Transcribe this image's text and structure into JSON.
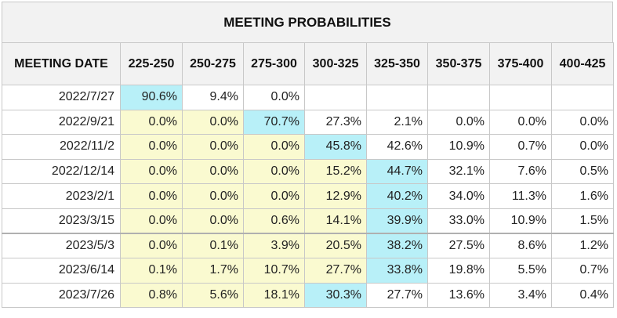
{
  "title": "MEETING PROBABILITIES",
  "columns": [
    "MEETING DATE",
    "225-250",
    "250-275",
    "275-300",
    "300-325",
    "325-350",
    "350-375",
    "375-400",
    "400-425"
  ],
  "rows": [
    {
      "date": "2022/7/27",
      "values": [
        "90.6%",
        "9.4%",
        "0.0%",
        "",
        "",
        "",
        "",
        ""
      ],
      "highlight": 0
    },
    {
      "date": "2022/9/21",
      "values": [
        "0.0%",
        "0.0%",
        "70.7%",
        "27.3%",
        "2.1%",
        "0.0%",
        "0.0%",
        "0.0%"
      ],
      "highlight": 2
    },
    {
      "date": "2022/11/2",
      "values": [
        "0.0%",
        "0.0%",
        "0.0%",
        "45.8%",
        "42.6%",
        "10.9%",
        "0.7%",
        "0.0%"
      ],
      "highlight": 3
    },
    {
      "date": "2022/12/14",
      "values": [
        "0.0%",
        "0.0%",
        "0.0%",
        "15.2%",
        "44.7%",
        "32.1%",
        "7.6%",
        "0.5%"
      ],
      "highlight": 4
    },
    {
      "date": "2023/2/1",
      "values": [
        "0.0%",
        "0.0%",
        "0.0%",
        "12.9%",
        "40.2%",
        "34.0%",
        "11.3%",
        "1.6%"
      ],
      "highlight": 4
    },
    {
      "date": "2023/3/15",
      "values": [
        "0.0%",
        "0.0%",
        "0.6%",
        "14.1%",
        "39.9%",
        "33.0%",
        "10.9%",
        "1.5%"
      ],
      "highlight": 4
    },
    {
      "date": "2023/5/3",
      "values": [
        "0.0%",
        "0.1%",
        "3.9%",
        "20.5%",
        "38.2%",
        "27.5%",
        "8.6%",
        "1.2%"
      ],
      "highlight": 4
    },
    {
      "date": "2023/6/14",
      "values": [
        "0.1%",
        "1.7%",
        "10.7%",
        "27.7%",
        "33.8%",
        "19.8%",
        "5.5%",
        "0.7%"
      ],
      "highlight": 4
    },
    {
      "date": "2023/7/26",
      "values": [
        "0.8%",
        "5.6%",
        "18.1%",
        "30.3%",
        "27.7%",
        "13.6%",
        "3.4%",
        "0.4%"
      ],
      "highlight": 3
    }
  ],
  "colors": {
    "highlight": "#b8f0f8",
    "below": "#fafad0",
    "header_bg": "#f2f2f2",
    "border": "#c8c8c8"
  }
}
